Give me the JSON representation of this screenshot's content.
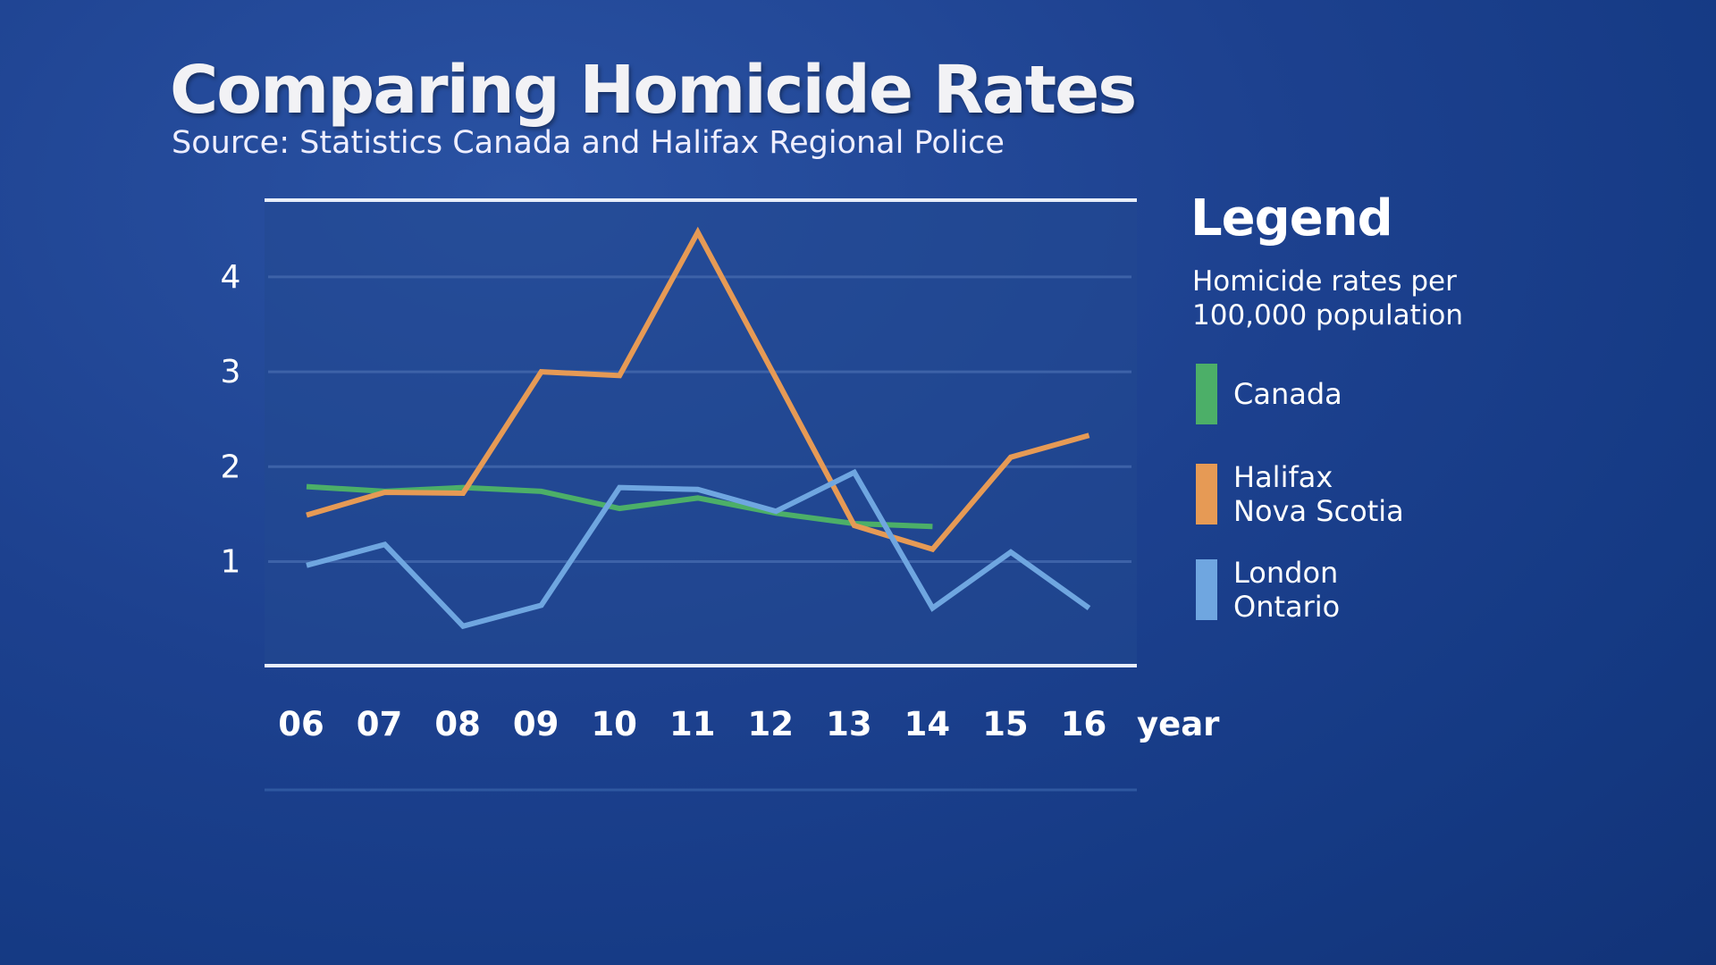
{
  "title": "Comparing Homicide Rates",
  "subtitle": "Source: Statistics Canada and Halifax Regional Police",
  "legend": {
    "heading": "Legend",
    "description": "Homicide rates per 100,000 population",
    "items": [
      {
        "label": "Canada",
        "color": "#4caf68"
      },
      {
        "label": "Halifax Nova Scotia",
        "color": "#e69a55"
      },
      {
        "label": "London Ontario",
        "color": "#6fa6e0"
      }
    ]
  },
  "chart_data": {
    "type": "line",
    "title": "Comparing Homicide Rates",
    "xlabel": "year",
    "ylabel": "Homicide rates per 100,000 population",
    "categories": [
      "06",
      "07",
      "08",
      "09",
      "10",
      "11",
      "12",
      "13",
      "14",
      "15",
      "16"
    ],
    "yticks": [
      "1",
      "2",
      "3",
      "4"
    ],
    "ylim": [
      0,
      4.9
    ],
    "grid": true,
    "legend_placement": "right",
    "series": [
      {
        "name": "Canada",
        "color": "#4caf68",
        "values": [
          1.79,
          1.74,
          1.78,
          1.74,
          1.56,
          1.67,
          1.51,
          1.4,
          1.37,
          null,
          null
        ]
      },
      {
        "name": "Halifax Nova Scotia",
        "color": "#e69a55",
        "values": [
          1.49,
          1.73,
          1.72,
          3.0,
          2.96,
          4.47,
          2.93,
          1.38,
          1.13,
          2.1,
          2.33
        ]
      },
      {
        "name": "London Ontario",
        "color": "#6fa6e0",
        "values": [
          0.96,
          1.18,
          0.32,
          0.54,
          1.78,
          1.76,
          1.53,
          1.94,
          0.51,
          1.1,
          0.51
        ]
      }
    ]
  }
}
